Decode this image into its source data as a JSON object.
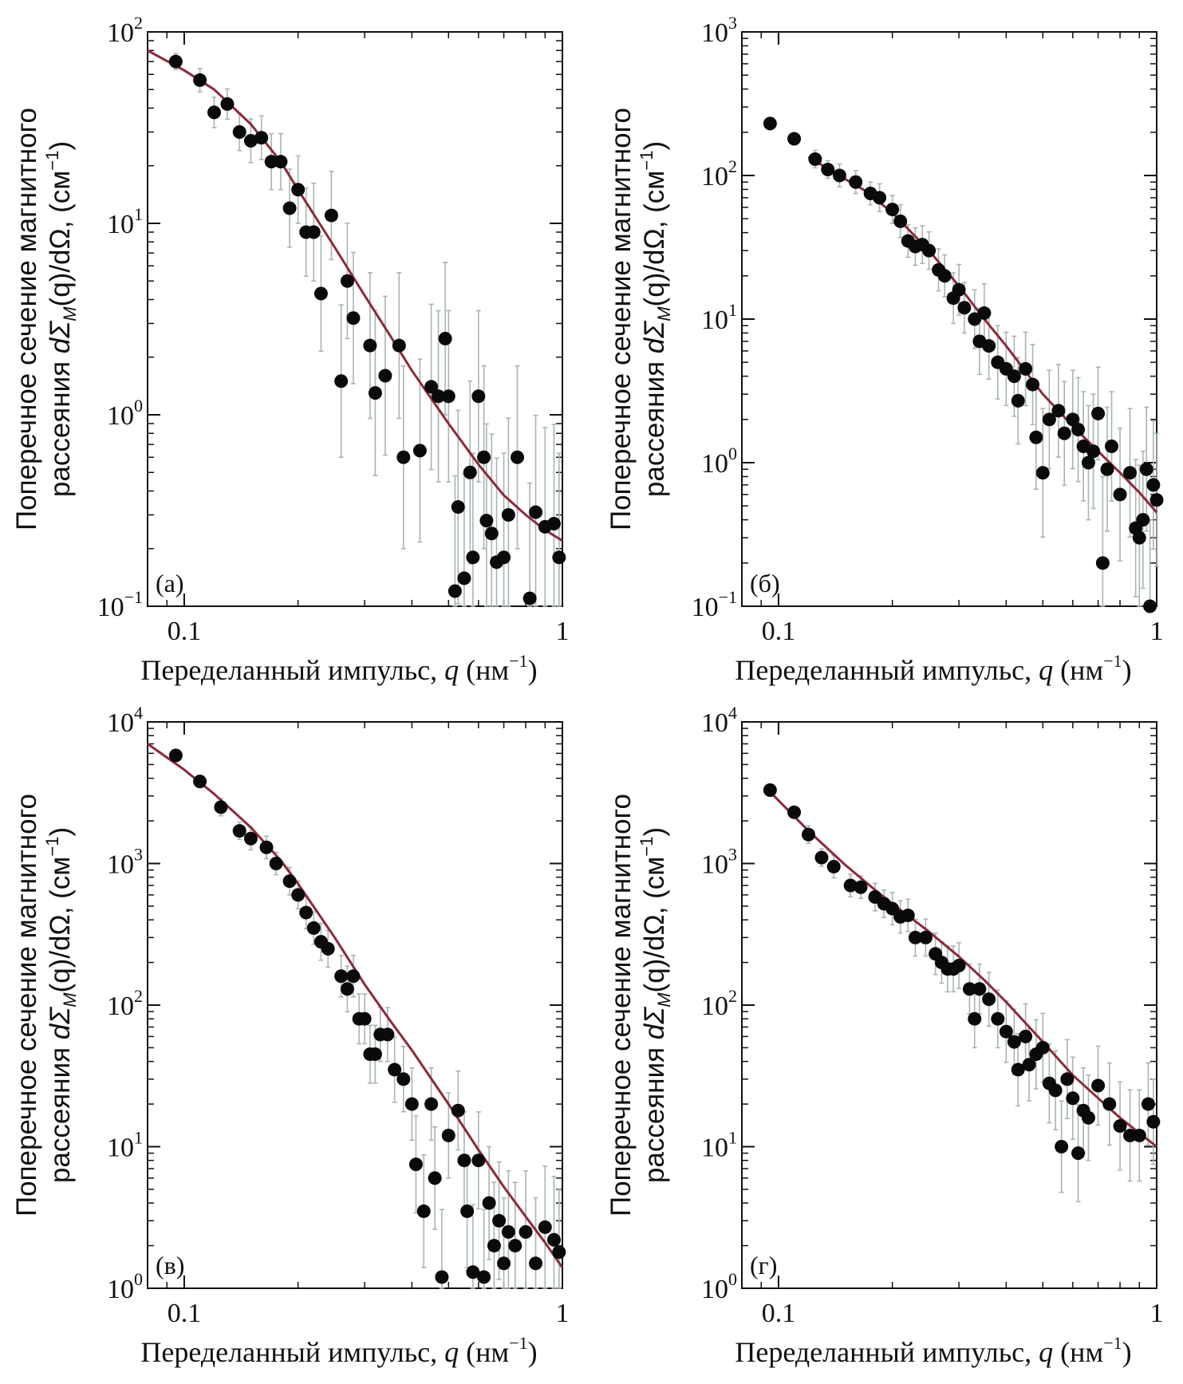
{
  "chart_data": [
    {
      "type": "scatter",
      "panel_label": "(а)",
      "xscale": "log",
      "yscale": "log",
      "xlim": [
        0.08,
        1.0
      ],
      "ylim": [
        0.1,
        100
      ],
      "xticks": [
        {
          "label": "0.1",
          "value": 0.1
        },
        {
          "label": "1",
          "value": 1
        }
      ],
      "yticks": [
        {
          "base": "10",
          "exp": "−1",
          "value": 0.1
        },
        {
          "base": "10",
          "exp": "0",
          "value": 1
        },
        {
          "base": "10",
          "exp": "1",
          "value": 10
        },
        {
          "base": "10",
          "exp": "2",
          "value": 100
        }
      ],
      "xlabel": {
        "main": "Переделанный импульс, ",
        "sym": "q",
        "unit": " (нм",
        "unit_exp": "−1",
        "unit_close": ")"
      },
      "ylabel": {
        "line1": "Поперечное сечение магнитного",
        "line2_pre": "рассеяния ",
        "line2_sym": "dΣ",
        "line2_sub": "M",
        "line2_mid": "(q)/dΩ, (см",
        "line2_exp": "−1",
        "line2_close": ")"
      },
      "fit": {
        "x": [
          0.08,
          0.1,
          0.12,
          0.15,
          0.18,
          0.2,
          0.25,
          0.3,
          0.35,
          0.4,
          0.5,
          0.6,
          0.7,
          0.8,
          0.9,
          1.0
        ],
        "y": [
          80,
          63,
          50,
          33,
          21,
          15,
          7.5,
          4.2,
          2.6,
          1.7,
          0.9,
          0.55,
          0.38,
          0.3,
          0.25,
          0.22
        ]
      },
      "points": [
        [
          0.095,
          70,
          1.1
        ],
        [
          0.11,
          56,
          1.15
        ],
        [
          0.12,
          38,
          1.2
        ],
        [
          0.13,
          42,
          1.2
        ],
        [
          0.14,
          30,
          1.25
        ],
        [
          0.15,
          27,
          1.3
        ],
        [
          0.16,
          28,
          1.3
        ],
        [
          0.17,
          21,
          1.4
        ],
        [
          0.18,
          21,
          1.4
        ],
        [
          0.19,
          12,
          1.6
        ],
        [
          0.2,
          15,
          1.5
        ],
        [
          0.21,
          9,
          1.7
        ],
        [
          0.22,
          9,
          1.8
        ],
        [
          0.23,
          4.3,
          2.0
        ],
        [
          0.245,
          11,
          1.7
        ],
        [
          0.26,
          1.5,
          2.5
        ],
        [
          0.27,
          5,
          2.0
        ],
        [
          0.28,
          3.2,
          2.2
        ],
        [
          0.31,
          2.3,
          2.4
        ],
        [
          0.32,
          1.3,
          2.7
        ],
        [
          0.34,
          1.6,
          2.6
        ],
        [
          0.37,
          2.3,
          2.4
        ],
        [
          0.38,
          0.6,
          3.0
        ],
        [
          0.42,
          0.65,
          3.0
        ],
        [
          0.45,
          1.4,
          2.7
        ],
        [
          0.47,
          1.25,
          2.8
        ],
        [
          0.49,
          2.5,
          2.5
        ],
        [
          0.5,
          1.25,
          2.8
        ],
        [
          0.52,
          0.12,
          4.0
        ],
        [
          0.53,
          0.33,
          3.2
        ],
        [
          0.55,
          0.14,
          3.5
        ],
        [
          0.57,
          0.5,
          3.0
        ],
        [
          0.58,
          0.18,
          3.5
        ],
        [
          0.6,
          1.25,
          2.8
        ],
        [
          0.62,
          0.6,
          3.0
        ],
        [
          0.63,
          0.28,
          3.2
        ],
        [
          0.65,
          0.24,
          3.3
        ],
        [
          0.67,
          0.17,
          3.5
        ],
        [
          0.7,
          0.18,
          3.5
        ],
        [
          0.72,
          0.3,
          3.2
        ],
        [
          0.76,
          0.6,
          3.0
        ],
        [
          0.82,
          0.11,
          4.0
        ],
        [
          0.85,
          0.31,
          3.2
        ],
        [
          0.9,
          0.26,
          3.3
        ],
        [
          0.95,
          0.27,
          3.3
        ],
        [
          0.98,
          0.18,
          3.5
        ]
      ]
    },
    {
      "type": "scatter",
      "panel_label": "(б)",
      "xscale": "log",
      "yscale": "log",
      "xlim": [
        0.08,
        1.0
      ],
      "ylim": [
        0.1,
        1000
      ],
      "xticks": [
        {
          "label": "0.1",
          "value": 0.1
        },
        {
          "label": "1",
          "value": 1
        }
      ],
      "yticks": [
        {
          "base": "10",
          "exp": "−1",
          "value": 0.1
        },
        {
          "base": "10",
          "exp": "0",
          "value": 1
        },
        {
          "base": "10",
          "exp": "1",
          "value": 10
        },
        {
          "base": "10",
          "exp": "2",
          "value": 100
        },
        {
          "base": "10",
          "exp": "3",
          "value": 1000
        }
      ],
      "xlabel": {
        "main": "Переделанный импульс, ",
        "sym": "q",
        "unit": " (нм",
        "unit_exp": "−1",
        "unit_close": ")"
      },
      "ylabel": {
        "line1": "Поперечное сечение магнитного",
        "line2_pre": "рассеяния ",
        "line2_sym": "dΣ",
        "line2_sub": "M",
        "line2_mid": "(q)/dΩ, (см",
        "line2_exp": "−1",
        "line2_close": ")"
      },
      "fit": {
        "x": [
          0.12,
          0.14,
          0.17,
          0.2,
          0.25,
          0.3,
          0.35,
          0.4,
          0.5,
          0.6,
          0.7,
          0.8,
          0.9,
          1.0
        ],
        "y": [
          135,
          105,
          78,
          55,
          30,
          17,
          10,
          6.5,
          3.0,
          1.8,
          1.2,
          0.85,
          0.62,
          0.45
        ]
      },
      "points": [
        [
          0.095,
          230,
          1.1
        ],
        [
          0.11,
          180,
          1.1
        ],
        [
          0.125,
          130,
          1.15
        ],
        [
          0.135,
          110,
          1.15
        ],
        [
          0.145,
          100,
          1.2
        ],
        [
          0.16,
          90,
          1.2
        ],
        [
          0.175,
          75,
          1.2
        ],
        [
          0.185,
          70,
          1.25
        ],
        [
          0.2,
          58,
          1.25
        ],
        [
          0.21,
          48,
          1.3
        ],
        [
          0.22,
          35,
          1.3
        ],
        [
          0.23,
          32,
          1.35
        ],
        [
          0.24,
          33,
          1.35
        ],
        [
          0.25,
          30,
          1.35
        ],
        [
          0.265,
          22,
          1.4
        ],
        [
          0.275,
          20,
          1.4
        ],
        [
          0.29,
          14,
          1.5
        ],
        [
          0.3,
          16,
          1.5
        ],
        [
          0.31,
          12,
          1.5
        ],
        [
          0.33,
          10,
          1.6
        ],
        [
          0.34,
          7,
          1.7
        ],
        [
          0.35,
          11,
          1.6
        ],
        [
          0.36,
          6.5,
          1.7
        ],
        [
          0.38,
          5,
          1.8
        ],
        [
          0.4,
          4.5,
          1.8
        ],
        [
          0.42,
          4,
          1.9
        ],
        [
          0.43,
          2.7,
          2.0
        ],
        [
          0.45,
          4.5,
          1.8
        ],
        [
          0.47,
          3.5,
          1.9
        ],
        [
          0.48,
          1.5,
          2.3
        ],
        [
          0.5,
          0.85,
          2.8
        ],
        [
          0.52,
          2.0,
          2.2
        ],
        [
          0.55,
          2.3,
          2.1
        ],
        [
          0.57,
          1.6,
          2.3
        ],
        [
          0.6,
          2.0,
          2.2
        ],
        [
          0.62,
          1.7,
          2.3
        ],
        [
          0.64,
          1.3,
          2.4
        ],
        [
          0.66,
          1.0,
          2.5
        ],
        [
          0.68,
          1.2,
          2.5
        ],
        [
          0.7,
          2.2,
          2.1
        ],
        [
          0.72,
          0.2,
          4.0
        ],
        [
          0.74,
          0.9,
          2.7
        ],
        [
          0.76,
          1.3,
          2.4
        ],
        [
          0.8,
          0.6,
          2.9
        ],
        [
          0.85,
          0.85,
          2.8
        ],
        [
          0.88,
          0.35,
          3.0
        ],
        [
          0.9,
          0.3,
          3.2
        ],
        [
          0.92,
          0.4,
          3.0
        ],
        [
          0.94,
          0.9,
          2.7
        ],
        [
          0.96,
          0.1,
          4.0
        ],
        [
          0.98,
          0.7,
          2.8
        ],
        [
          1.0,
          0.55,
          2.9
        ]
      ]
    },
    {
      "type": "scatter",
      "panel_label": "(в)",
      "xscale": "log",
      "yscale": "log",
      "xlim": [
        0.08,
        1.0
      ],
      "ylim": [
        1,
        10000
      ],
      "xticks": [
        {
          "label": "0.1",
          "value": 0.1
        },
        {
          "label": "1",
          "value": 1
        }
      ],
      "yticks": [
        {
          "base": "10",
          "exp": "0",
          "value": 1
        },
        {
          "base": "10",
          "exp": "1",
          "value": 10
        },
        {
          "base": "10",
          "exp": "2",
          "value": 100
        },
        {
          "base": "10",
          "exp": "3",
          "value": 1000
        },
        {
          "base": "10",
          "exp": "4",
          "value": 10000
        }
      ],
      "xlabel": {
        "main": "Переделанный импульс, ",
        "sym": "q",
        "unit": " (нм",
        "unit_exp": "−1",
        "unit_close": ")"
      },
      "ylabel": {
        "line1": "Поперечное сечение магнитного",
        "line2_pre": "рассеяния ",
        "line2_sym": "dΣ",
        "line2_sub": "M",
        "line2_mid": "(q)/dΩ, (см",
        "line2_exp": "−1",
        "line2_close": ")"
      },
      "fit": {
        "x": [
          0.08,
          0.1,
          0.12,
          0.15,
          0.18,
          0.2,
          0.25,
          0.3,
          0.35,
          0.4,
          0.5,
          0.6,
          0.7,
          0.8,
          0.9,
          1.0
        ],
        "y": [
          7000,
          4600,
          3100,
          1800,
          1050,
          720,
          300,
          140,
          78,
          48,
          20,
          9.5,
          5.2,
          3.2,
          2.1,
          1.4
        ]
      },
      "points": [
        [
          0.095,
          5800,
          1.1
        ],
        [
          0.11,
          3800,
          1.1
        ],
        [
          0.125,
          2500,
          1.15
        ],
        [
          0.14,
          1700,
          1.15
        ],
        [
          0.15,
          1500,
          1.2
        ],
        [
          0.165,
          1300,
          1.2
        ],
        [
          0.175,
          1000,
          1.2
        ],
        [
          0.19,
          750,
          1.25
        ],
        [
          0.2,
          600,
          1.25
        ],
        [
          0.21,
          450,
          1.3
        ],
        [
          0.22,
          350,
          1.3
        ],
        [
          0.23,
          280,
          1.35
        ],
        [
          0.24,
          250,
          1.35
        ],
        [
          0.26,
          160,
          1.4
        ],
        [
          0.27,
          130,
          1.45
        ],
        [
          0.28,
          160,
          1.4
        ],
        [
          0.29,
          80,
          1.5
        ],
        [
          0.3,
          80,
          1.5
        ],
        [
          0.31,
          45,
          1.6
        ],
        [
          0.32,
          45,
          1.6
        ],
        [
          0.33,
          62,
          1.55
        ],
        [
          0.345,
          62,
          1.55
        ],
        [
          0.36,
          35,
          1.7
        ],
        [
          0.38,
          30,
          1.7
        ],
        [
          0.4,
          20,
          1.8
        ],
        [
          0.41,
          7.5,
          2.2
        ],
        [
          0.43,
          3.5,
          2.5
        ],
        [
          0.45,
          20,
          1.8
        ],
        [
          0.46,
          6,
          2.3
        ],
        [
          0.48,
          1.2,
          3.0
        ],
        [
          0.5,
          12,
          2.0
        ],
        [
          0.53,
          18,
          1.9
        ],
        [
          0.55,
          8,
          2.2
        ],
        [
          0.56,
          3.5,
          2.5
        ],
        [
          0.58,
          1.3,
          3.0
        ],
        [
          0.6,
          8,
          2.2
        ],
        [
          0.62,
          1.2,
          3.0
        ],
        [
          0.64,
          4,
          2.5
        ],
        [
          0.66,
          2,
          2.8
        ],
        [
          0.68,
          3,
          2.6
        ],
        [
          0.7,
          1.5,
          2.9
        ],
        [
          0.72,
          2.5,
          2.7
        ],
        [
          0.75,
          2,
          2.8
        ],
        [
          0.8,
          2.5,
          2.7
        ],
        [
          0.85,
          1.5,
          2.9
        ],
        [
          0.9,
          2.7,
          2.7
        ],
        [
          0.95,
          2.2,
          2.8
        ],
        [
          0.98,
          1.8,
          2.8
        ]
      ]
    },
    {
      "type": "scatter",
      "panel_label": "(г)",
      "xscale": "log",
      "yscale": "log",
      "xlim": [
        0.08,
        1.0
      ],
      "ylim": [
        1,
        10000
      ],
      "xticks": [
        {
          "label": "0.1",
          "value": 0.1
        },
        {
          "label": "1",
          "value": 1
        }
      ],
      "yticks": [
        {
          "base": "10",
          "exp": "0",
          "value": 1
        },
        {
          "base": "10",
          "exp": "1",
          "value": 10
        },
        {
          "base": "10",
          "exp": "2",
          "value": 100
        },
        {
          "base": "10",
          "exp": "3",
          "value": 1000
        },
        {
          "base": "10",
          "exp": "4",
          "value": 10000
        }
      ],
      "xlabel": {
        "main": "Переделанный импульс, ",
        "sym": "q",
        "unit": " (нм",
        "unit_exp": "−1",
        "unit_close": ")"
      },
      "ylabel": {
        "line1": "Поперечное сечение магнитного",
        "line2_pre": "рассеяния ",
        "line2_sym": "dΣ",
        "line2_sub": "M",
        "line2_mid": "(q)/dΩ, (см",
        "line2_exp": "−1",
        "line2_close": ")"
      },
      "fit": {
        "x": [
          0.095,
          0.12,
          0.15,
          0.18,
          0.2,
          0.25,
          0.3,
          0.35,
          0.4,
          0.5,
          0.6,
          0.7,
          0.8,
          0.9,
          1.0
        ],
        "y": [
          3200,
          1700,
          980,
          650,
          520,
          330,
          220,
          150,
          105,
          55,
          32,
          22,
          16,
          12.5,
          10
        ]
      },
      "points": [
        [
          0.095,
          3300,
          1.1
        ],
        [
          0.11,
          2300,
          1.1
        ],
        [
          0.12,
          1600,
          1.15
        ],
        [
          0.13,
          1100,
          1.15
        ],
        [
          0.14,
          950,
          1.2
        ],
        [
          0.155,
          700,
          1.2
        ],
        [
          0.165,
          680,
          1.2
        ],
        [
          0.18,
          580,
          1.25
        ],
        [
          0.19,
          520,
          1.25
        ],
        [
          0.2,
          480,
          1.3
        ],
        [
          0.21,
          420,
          1.3
        ],
        [
          0.22,
          430,
          1.3
        ],
        [
          0.23,
          300,
          1.35
        ],
        [
          0.245,
          300,
          1.35
        ],
        [
          0.26,
          230,
          1.4
        ],
        [
          0.27,
          200,
          1.4
        ],
        [
          0.28,
          180,
          1.45
        ],
        [
          0.29,
          180,
          1.45
        ],
        [
          0.3,
          190,
          1.45
        ],
        [
          0.32,
          130,
          1.5
        ],
        [
          0.33,
          80,
          1.6
        ],
        [
          0.34,
          130,
          1.5
        ],
        [
          0.36,
          110,
          1.55
        ],
        [
          0.38,
          80,
          1.6
        ],
        [
          0.4,
          65,
          1.65
        ],
        [
          0.42,
          55,
          1.7
        ],
        [
          0.43,
          35,
          1.8
        ],
        [
          0.45,
          60,
          1.7
        ],
        [
          0.46,
          38,
          1.8
        ],
        [
          0.48,
          45,
          1.75
        ],
        [
          0.5,
          50,
          1.75
        ],
        [
          0.52,
          28,
          1.9
        ],
        [
          0.54,
          25,
          1.9
        ],
        [
          0.56,
          10,
          2.1
        ],
        [
          0.58,
          30,
          1.9
        ],
        [
          0.6,
          22,
          1.95
        ],
        [
          0.62,
          9,
          2.2
        ],
        [
          0.64,
          18,
          2.0
        ],
        [
          0.66,
          16,
          2.0
        ],
        [
          0.7,
          27,
          1.9
        ],
        [
          0.75,
          20,
          1.95
        ],
        [
          0.8,
          14,
          2.05
        ],
        [
          0.85,
          12,
          2.1
        ],
        [
          0.9,
          12,
          2.1
        ],
        [
          0.95,
          20,
          1.95
        ],
        [
          0.98,
          15,
          2.0
        ]
      ]
    }
  ]
}
